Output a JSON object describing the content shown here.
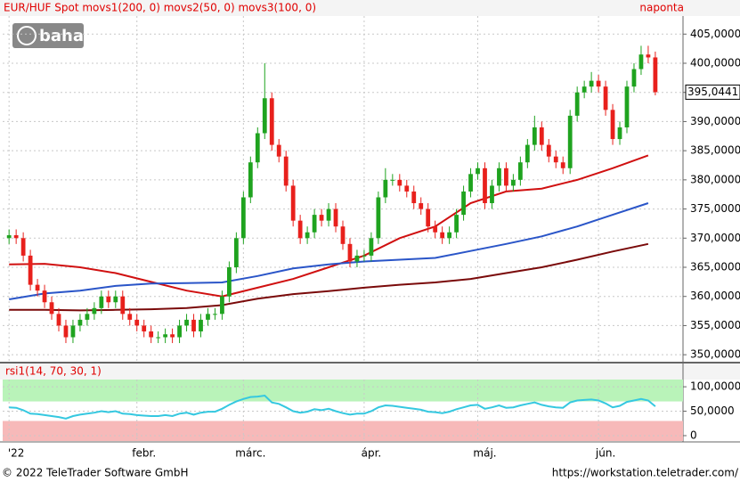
{
  "chart_data": [
    {
      "type": "candlestick",
      "title": "EUR/HUF Spot movs1(200, 0) movs2(50, 0) movs3(100, 0)",
      "period": "naponta",
      "open": [
        370,
        370.5,
        370,
        367,
        362,
        361,
        359,
        357,
        355,
        353,
        355,
        356,
        357,
        358,
        360,
        359,
        360,
        357,
        356,
        355,
        354,
        353,
        353,
        353.5,
        353,
        355,
        356,
        354,
        356,
        357,
        357,
        360,
        365,
        370,
        377,
        383,
        388,
        394,
        386,
        384,
        379,
        373,
        370,
        371,
        374,
        373,
        375,
        372,
        369,
        366,
        367,
        367,
        370,
        377,
        380,
        380,
        379,
        378,
        376,
        375,
        372,
        371,
        370,
        371,
        374,
        378,
        381,
        382,
        376,
        379,
        382,
        379,
        380,
        383,
        386,
        389,
        386,
        384,
        383,
        382,
        391,
        395,
        396,
        397,
        396,
        392,
        387,
        389,
        396,
        399,
        401.5,
        401
      ],
      "high": [
        371.5,
        371.5,
        371,
        368,
        363,
        362,
        360,
        358,
        356,
        356,
        357,
        358,
        359,
        361,
        361,
        361,
        361,
        358,
        357,
        356,
        355,
        354,
        354.5,
        354.5,
        356,
        357,
        357,
        357,
        358,
        358,
        361,
        366,
        371,
        378,
        384,
        389,
        400,
        395,
        387,
        385,
        380,
        374,
        372,
        375,
        375,
        376,
        376,
        373,
        370,
        368,
        368,
        371,
        378,
        382,
        381,
        381,
        380,
        379,
        377,
        376,
        373,
        372,
        372,
        375,
        379,
        382,
        383,
        383,
        380,
        383,
        383,
        381,
        384,
        387,
        391,
        390,
        387,
        385,
        384,
        392,
        396,
        397,
        398.5,
        398,
        397,
        393,
        390,
        397,
        400,
        403,
        403,
        402
      ],
      "low": [
        369,
        369,
        366,
        361,
        360,
        358,
        356,
        354,
        352,
        352,
        354,
        355,
        356,
        357,
        358,
        358,
        356,
        355,
        354,
        353,
        352,
        352,
        352,
        352,
        352,
        354,
        353,
        353,
        355,
        356,
        356,
        359,
        364,
        369,
        376,
        382,
        387,
        385,
        383,
        378,
        372,
        369,
        369,
        370,
        372,
        372,
        371,
        368,
        365,
        365,
        366,
        366,
        369,
        376,
        379,
        378,
        377,
        375,
        374,
        371,
        370,
        369,
        369,
        370,
        373,
        377,
        380,
        375,
        375,
        378,
        378,
        378,
        379,
        382,
        385,
        385,
        383,
        382,
        381,
        381,
        390,
        394,
        395,
        395,
        391,
        386,
        386,
        388,
        395,
        398,
        400,
        394.5
      ],
      "close": [
        370.5,
        370,
        367,
        362,
        361,
        359,
        357,
        355,
        353,
        355,
        356,
        357,
        358,
        360,
        359,
        360,
        357,
        356,
        355,
        354,
        353,
        353,
        353.5,
        353,
        355,
        356,
        354,
        356,
        357,
        357,
        360,
        365,
        370,
        377,
        383,
        388,
        394,
        386,
        384,
        379,
        373,
        370,
        371,
        374,
        373,
        375,
        372,
        369,
        366,
        367,
        367,
        370,
        377,
        380,
        380,
        379,
        378,
        376,
        375,
        372,
        371,
        370,
        371,
        374,
        378,
        381,
        382,
        376,
        379,
        382,
        379,
        380,
        383,
        386,
        389,
        386,
        384,
        383,
        382,
        391,
        395,
        396,
        397,
        396,
        392,
        387,
        389,
        396,
        399,
        401.5,
        401,
        395.0441
      ],
      "last_value_label": "395,0441",
      "up_color": "#1fa31f",
      "down_color": "#e8201c",
      "series": [
        {
          "color": "#7a0a0a",
          "x": [
            0,
            5,
            10,
            15,
            20,
            25,
            30,
            35,
            40,
            45,
            50,
            55,
            60,
            65,
            70,
            75,
            80,
            85,
            90
          ],
          "values": [
            357.7,
            357.7,
            357.6,
            357.7,
            357.8,
            358,
            358.5,
            359.6,
            360.4,
            360.9,
            361.5,
            362,
            362.4,
            363,
            364,
            365,
            366.3,
            367.7,
            369
          ]
        },
        {
          "color": "#d01010",
          "x": [
            0,
            5,
            10,
            15,
            20,
            25,
            30,
            35,
            40,
            45,
            50,
            55,
            60,
            65,
            70,
            75,
            80,
            85,
            90
          ],
          "values": [
            365.5,
            365.6,
            365,
            364,
            362.5,
            361,
            360,
            361.5,
            363,
            365,
            367,
            370,
            372,
            376,
            378,
            378.5,
            380,
            382,
            384.2
          ]
        },
        {
          "color": "#2a55c8",
          "x": [
            0,
            5,
            10,
            15,
            20,
            25,
            30,
            35,
            40,
            45,
            50,
            55,
            60,
            65,
            70,
            75,
            80,
            85,
            90
          ],
          "values": [
            359.5,
            360.5,
            361,
            361.8,
            362.2,
            362.3,
            362.4,
            363.5,
            364.8,
            365.5,
            366,
            366.3,
            366.6,
            367.8,
            369,
            370.3,
            372,
            374,
            376
          ]
        }
      ],
      "xlim": [
        -0.9,
        94.9
      ],
      "xticks": [
        {
          "value": 0,
          "label": "'22"
        },
        {
          "value": 18,
          "label": "febr."
        },
        {
          "value": 33,
          "label": "márc."
        },
        {
          "value": 50,
          "label": "ápr."
        },
        {
          "value": 66,
          "label": "máj."
        },
        {
          "value": 83,
          "label": "jún."
        }
      ],
      "ylim": [
        348.8,
        408.1
      ],
      "yticks": [
        {
          "value": 350,
          "label": "350,0000"
        },
        {
          "value": 355,
          "label": "355,0000"
        },
        {
          "value": 360,
          "label": "360,0000"
        },
        {
          "value": 365,
          "label": "365,0000"
        },
        {
          "value": 370,
          "label": "370,0000"
        },
        {
          "value": 375,
          "label": "375,0000"
        },
        {
          "value": 380,
          "label": "380,0000"
        },
        {
          "value": 385,
          "label": "385,0000"
        },
        {
          "value": 390,
          "label": "390,0000"
        },
        {
          "value": 395,
          "label": "395,0000"
        },
        {
          "value": 400,
          "label": "400,0000"
        },
        {
          "value": 405,
          "label": "405,0000"
        }
      ],
      "grid": true
    },
    {
      "type": "line",
      "title": "rsi1(14, 70, 30, 1)",
      "series": [
        {
          "color": "#35c8e0",
          "values": [
            58,
            57,
            52,
            45,
            44,
            42,
            40,
            38,
            35,
            40,
            43,
            45,
            47,
            50,
            48,
            50,
            45,
            44,
            42,
            41,
            40,
            40,
            42,
            40,
            45,
            47,
            43,
            47,
            49,
            49,
            55,
            63,
            70,
            75,
            79,
            80,
            82,
            68,
            65,
            58,
            50,
            47,
            49,
            54,
            52,
            55,
            50,
            46,
            43,
            45,
            45,
            50,
            58,
            62,
            61,
            59,
            57,
            55,
            53,
            49,
            48,
            46,
            49,
            54,
            58,
            62,
            63,
            55,
            58,
            62,
            57,
            58,
            62,
            65,
            68,
            63,
            60,
            58,
            57,
            68,
            72,
            73,
            74,
            72,
            66,
            58,
            61,
            69,
            72,
            75,
            72,
            60
          ]
        }
      ],
      "levels": [
        {
          "value": 70,
          "side": "above",
          "color": "#b9f3b9"
        },
        {
          "value": 30,
          "side": "below",
          "color": "#f7b9b9"
        }
      ],
      "xlim": [
        -0.9,
        94.9
      ],
      "ylim": [
        -11,
        114.8
      ],
      "yticks": [
        0,
        {
          "value": 50,
          "label": "50,0000"
        },
        {
          "value": 100,
          "label": "100,0000"
        }
      ],
      "grid": true
    }
  ],
  "logo": "baha",
  "footer": {
    "copyright": "© 2022 TeleTrader Software GmbH",
    "url": "https://workstation.teletrader.com/"
  }
}
